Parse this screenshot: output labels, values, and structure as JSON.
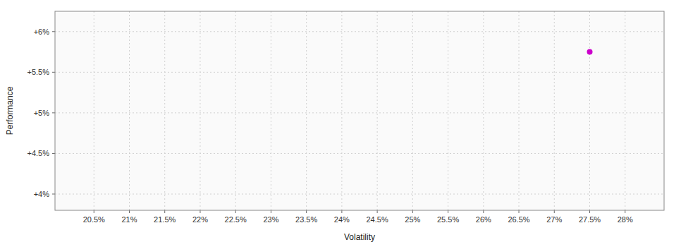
{
  "chart_data": {
    "type": "scatter",
    "x_label": "Volatility",
    "y_label": "Performance",
    "x": [
      0.275
    ],
    "values": [
      0.0575
    ],
    "color": "#cc00cc",
    "xlim": [
      0.1995,
      0.2855
    ],
    "ylim": [
      0.038,
      0.0625
    ],
    "xticks": [
      {
        "value": 0.205,
        "label": "20.5%"
      },
      {
        "value": 0.21,
        "label": "21%"
      },
      {
        "value": 0.215,
        "label": "21.5%"
      },
      {
        "value": 0.22,
        "label": "22%"
      },
      {
        "value": 0.225,
        "label": "22.5%"
      },
      {
        "value": 0.23,
        "label": "23%"
      },
      {
        "value": 0.235,
        "label": "23.5%"
      },
      {
        "value": 0.24,
        "label": "24%"
      },
      {
        "value": 0.245,
        "label": "24.5%"
      },
      {
        "value": 0.25,
        "label": "25%"
      },
      {
        "value": 0.255,
        "label": "25.5%"
      },
      {
        "value": 0.26,
        "label": "26%"
      },
      {
        "value": 0.265,
        "label": "26.5%"
      },
      {
        "value": 0.27,
        "label": "27%"
      },
      {
        "value": 0.275,
        "label": "27.5%"
      },
      {
        "value": 0.28,
        "label": "28%"
      }
    ],
    "yticks": [
      {
        "value": 0.04,
        "label": "+4%"
      },
      {
        "value": 0.045,
        "label": "+4.5%"
      },
      {
        "value": 0.05,
        "label": "+5%"
      },
      {
        "value": 0.055,
        "label": "+5.5%"
      },
      {
        "value": 0.06,
        "label": "+6%"
      }
    ],
    "grid": true
  }
}
